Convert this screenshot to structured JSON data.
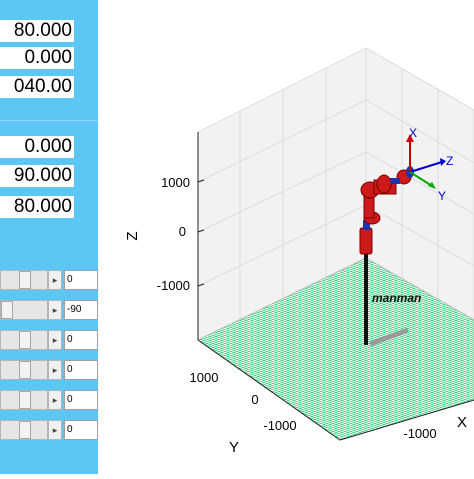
{
  "readouts_top": [
    "80.000",
    "0.000",
    "040.00"
  ],
  "readouts_bottom": [
    "0.000",
    "90.000",
    "80.000"
  ],
  "sliders": [
    {
      "value": "0"
    },
    {
      "value": "-90"
    },
    {
      "value": "0"
    },
    {
      "value": "0"
    },
    {
      "value": "0"
    },
    {
      "value": "0"
    }
  ],
  "plot": {
    "z_ticks": [
      "1000",
      "0",
      "-1000"
    ],
    "z_label": "Z",
    "y_ticks": [
      "1000",
      "0",
      "-1000"
    ],
    "y_label": "Y",
    "x_ticks": [
      "-1000"
    ],
    "x_label": "X",
    "robot_label": "manman",
    "frame_labels": {
      "x": "X",
      "y": "Y",
      "z": "Z"
    }
  },
  "colors": {
    "panel": "#5cc6f4",
    "floor": "#2ecc71",
    "robot_link": "#cc1111",
    "robot_joint_blue": "#2233aa",
    "axis_x": "#cc0000",
    "axis_y": "#00aa00",
    "axis_z": "#0000cc"
  }
}
